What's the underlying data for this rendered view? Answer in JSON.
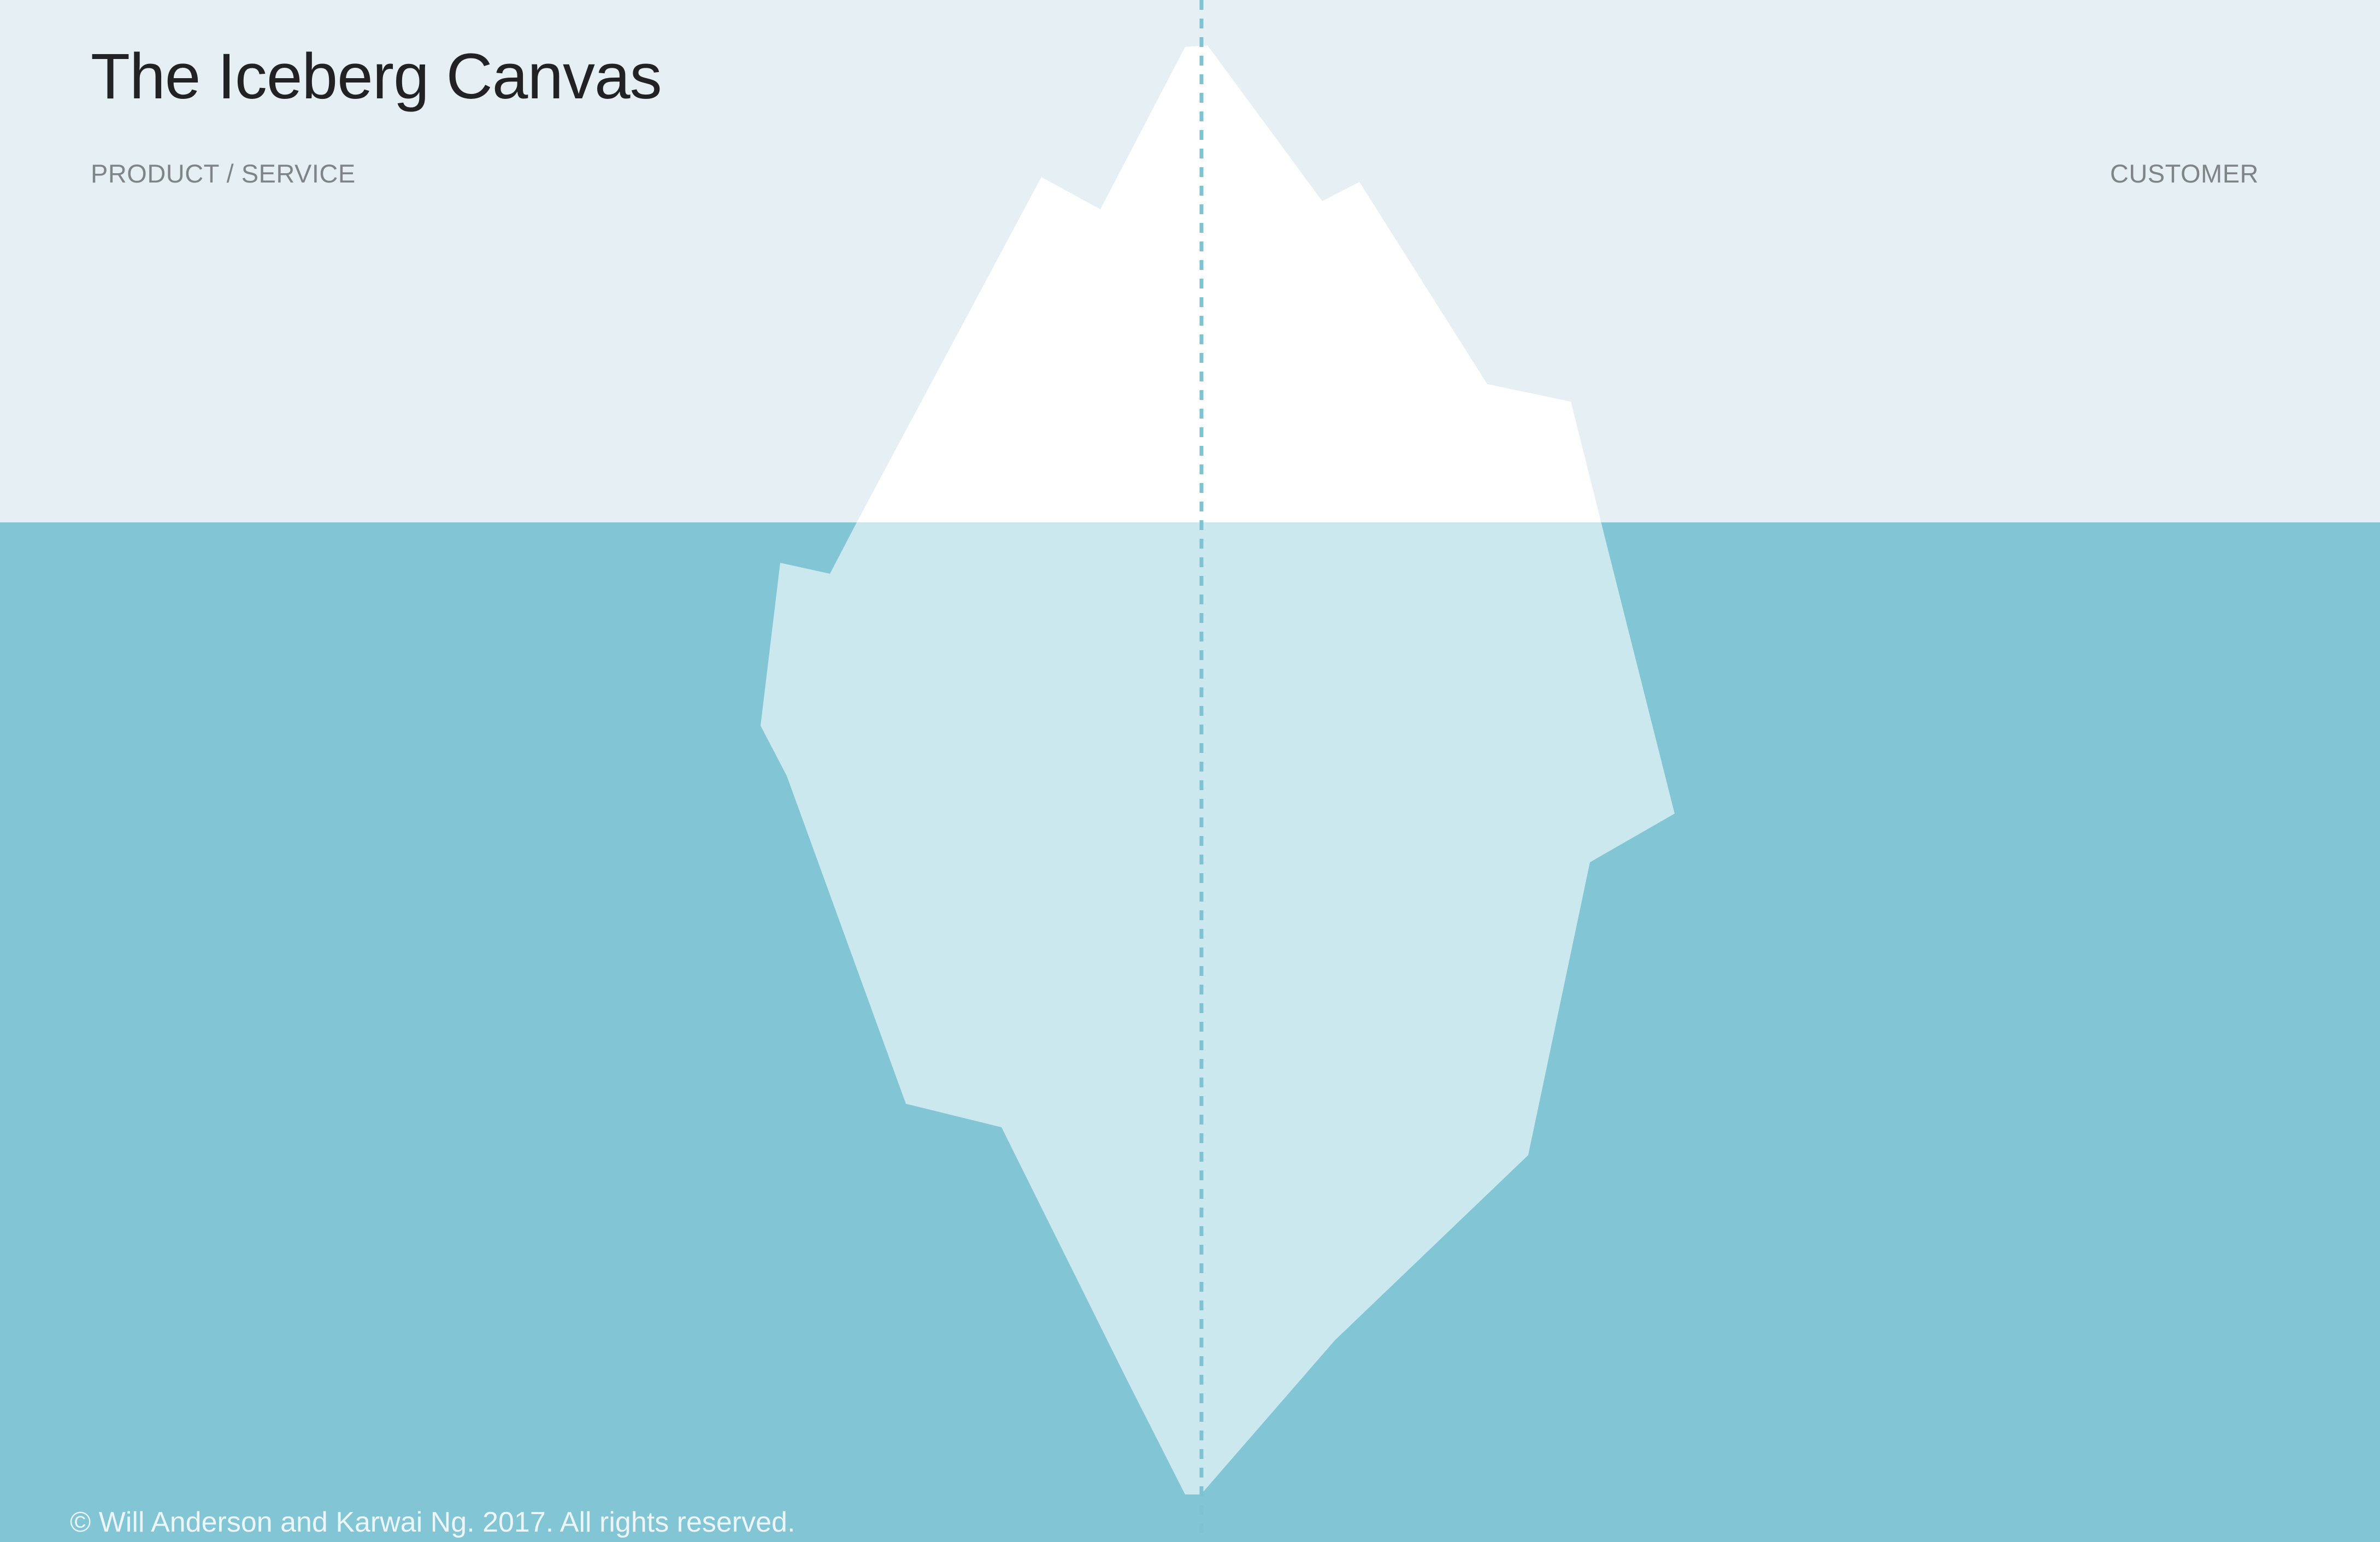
{
  "title": "The Iceberg Canvas",
  "labels": {
    "left": "PRODUCT / SERVICE",
    "right": "CUSTOMER"
  },
  "copyright": "© Will Anderson and Karwai Ng. 2017. All rights reserved.",
  "colors": {
    "sky": "#e6f0f4",
    "water": "#82c5d5",
    "ice_above": "#ffffff",
    "ice_below": "#cbe8ee",
    "divider": "#7fc3d2",
    "title": "#222224",
    "label": "#808486"
  }
}
